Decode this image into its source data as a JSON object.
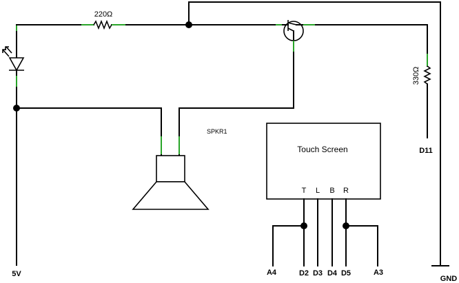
{
  "labels": {
    "r1": "220Ω",
    "r2": "330Ω",
    "speaker": "SPKR1",
    "touch_screen": "Touch Screen",
    "pin_t": "T",
    "pin_l": "L",
    "pin_b": "B",
    "pin_r": "R",
    "v5": "5V",
    "d11": "D11",
    "gnd": "GND",
    "a4": "A4",
    "d2": "D2",
    "d3": "D3",
    "d4": "D4",
    "d5": "D5",
    "a3": "A3"
  }
}
